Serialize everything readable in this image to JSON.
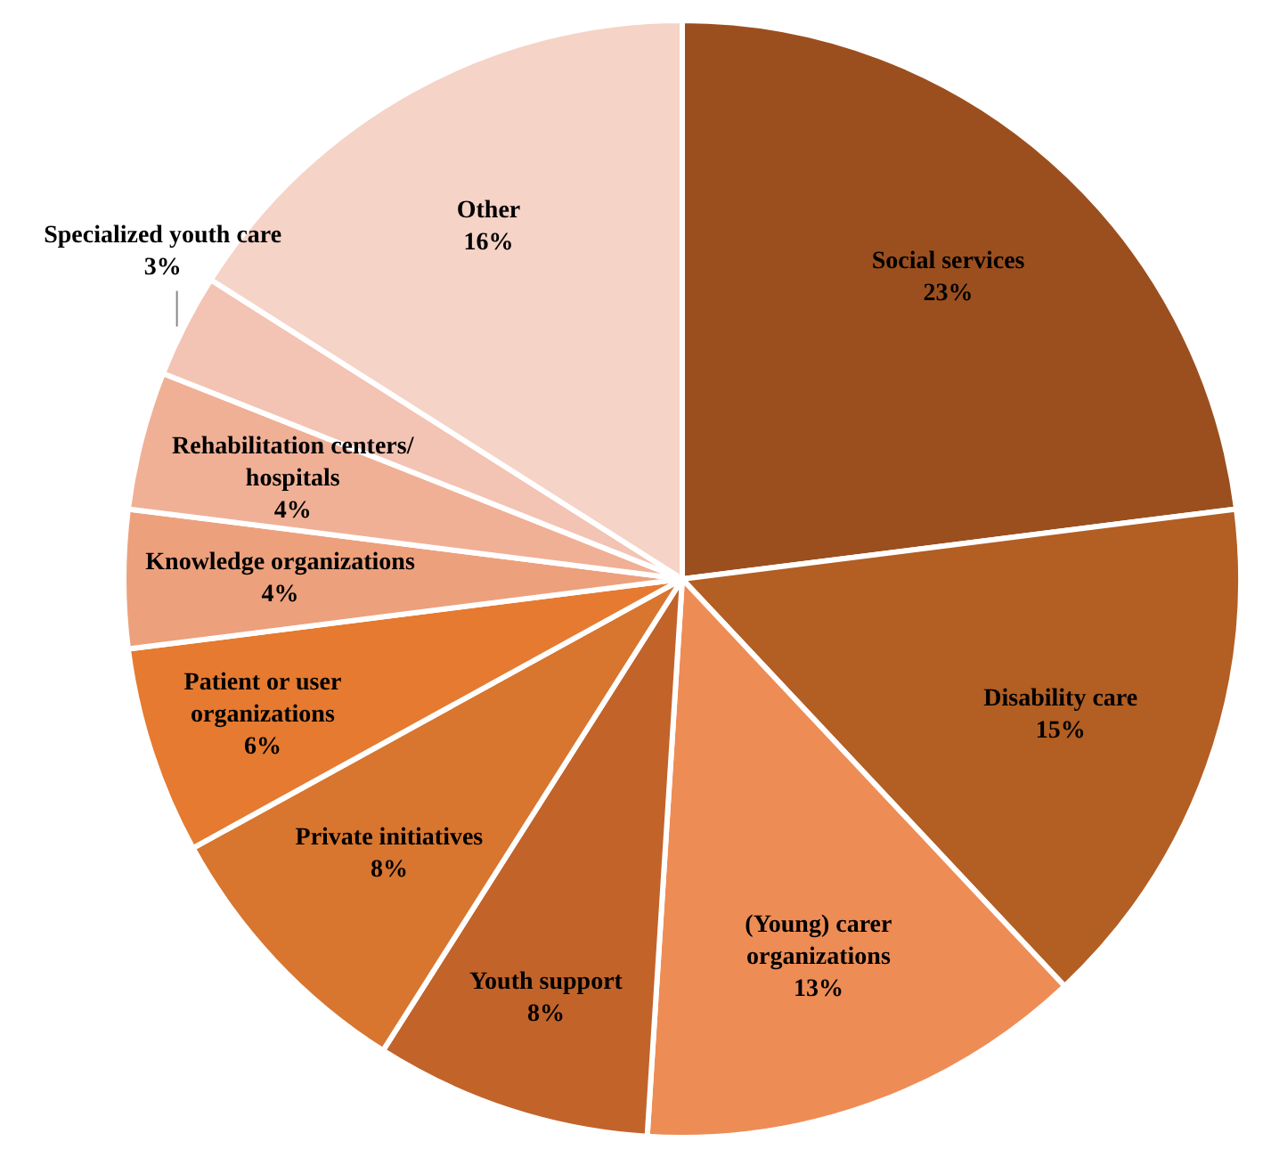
{
  "chart_data": {
    "type": "pie",
    "categories": [
      "Social services",
      "Disability care",
      "(Young) carer\norganizations",
      "Youth support",
      "Private initiatives",
      "Patient or user\norganizations",
      "Knowledge organizations",
      "Rehabilitation centers/\nhospitals",
      "Specialized youth care",
      "Other"
    ],
    "values": [
      23,
      15,
      13,
      8,
      8,
      6,
      4,
      4,
      3,
      16
    ],
    "colors": [
      "#9c4f1e",
      "#b35e23",
      "#ee8c55",
      "#c2632a",
      "#d8752e",
      "#e57a30",
      "#eda07c",
      "#f0b096",
      "#f3c3b3",
      "#f5d3c6"
    ],
    "value_labels": [
      "23%",
      "15%",
      "13%",
      "8%",
      "8%",
      "6%",
      "4%",
      "4%",
      "3%",
      "16%"
    ],
    "data_labels": true,
    "legend": false
  }
}
